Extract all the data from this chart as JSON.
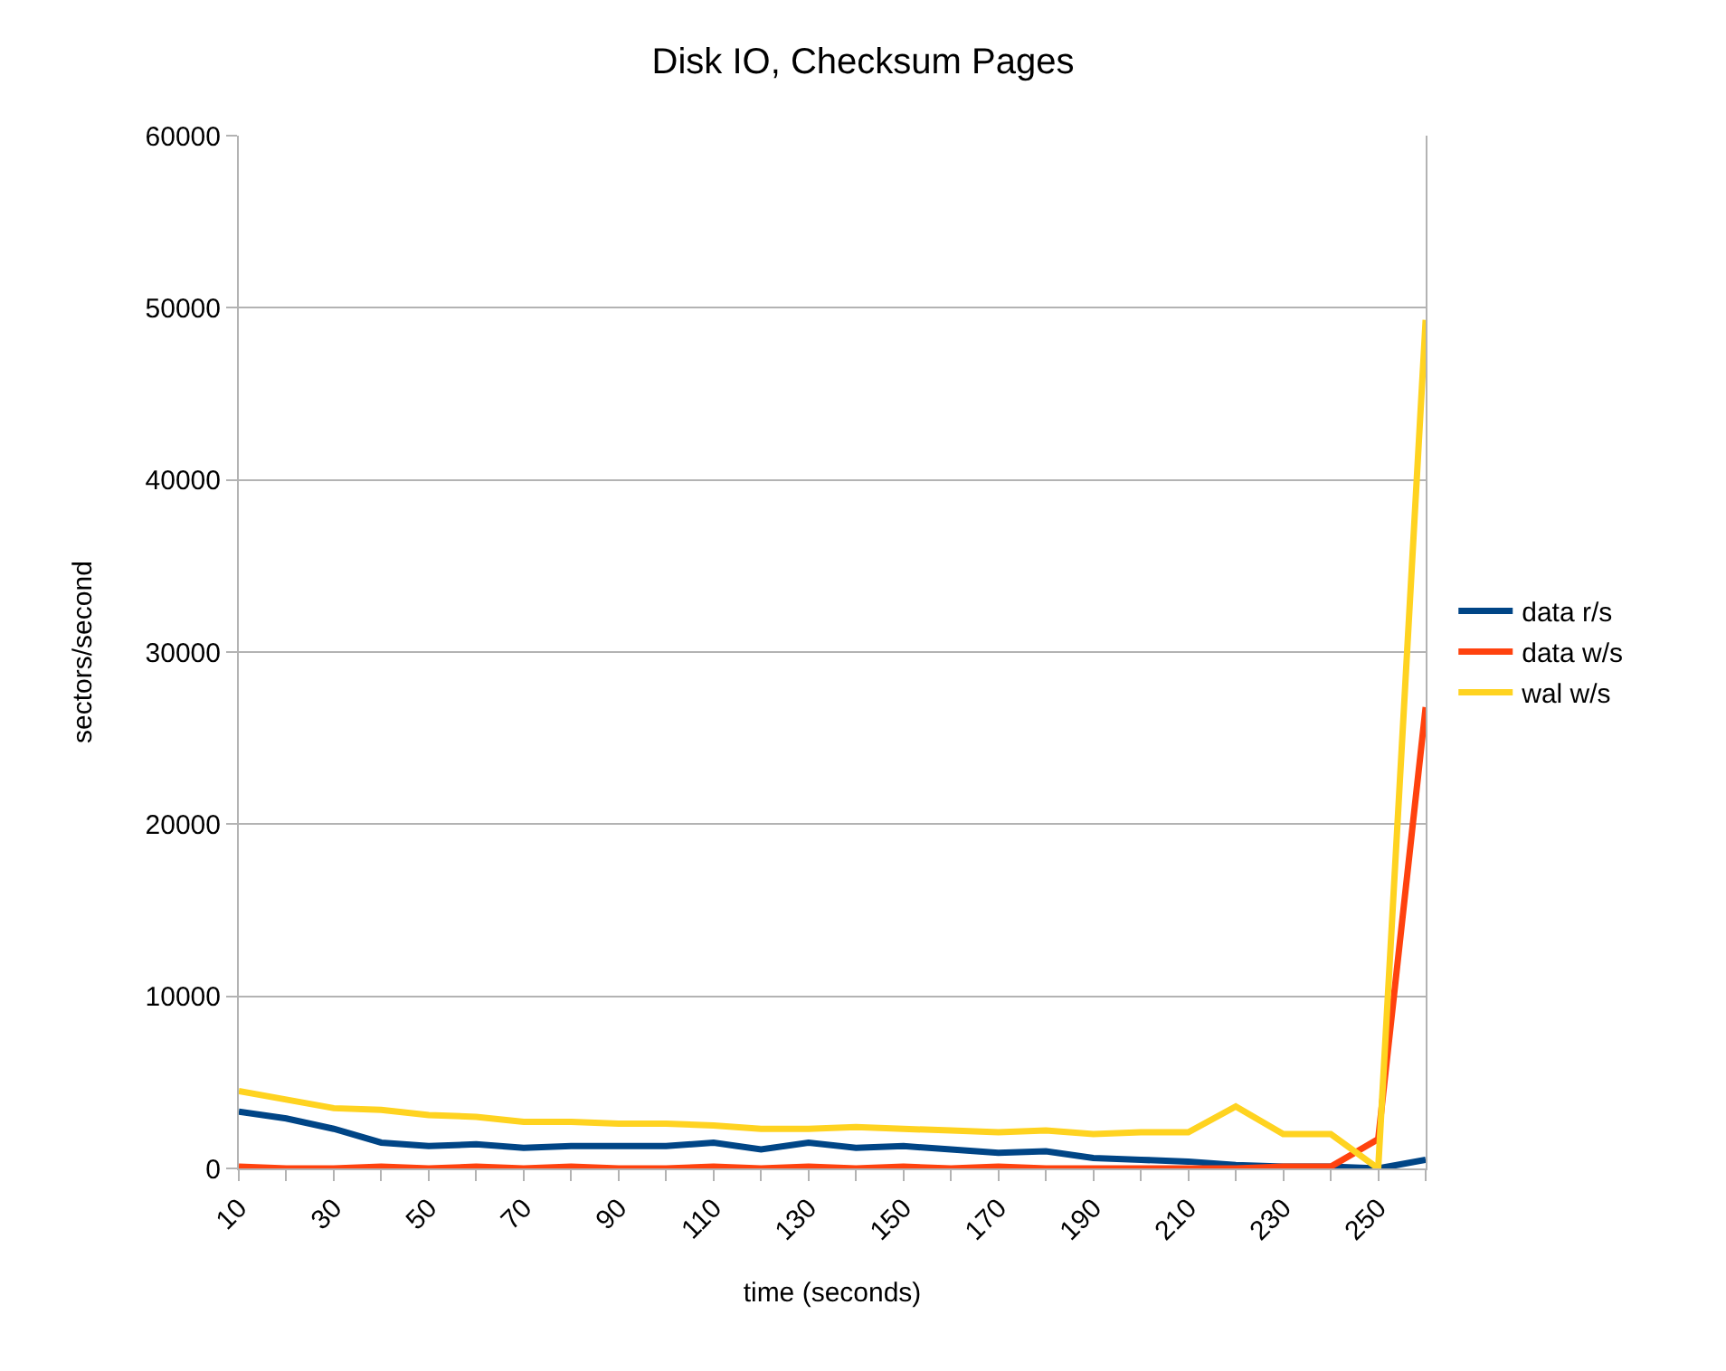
{
  "chart_data": {
    "type": "line",
    "title": "Disk IO, Checksum Pages",
    "xlabel": "time (seconds)",
    "ylabel": "sectors/second",
    "x": [
      10,
      20,
      30,
      40,
      50,
      60,
      70,
      80,
      90,
      100,
      110,
      120,
      130,
      140,
      150,
      160,
      170,
      180,
      190,
      200,
      210,
      220,
      230,
      240,
      250,
      260
    ],
    "series": [
      {
        "name": "data r/s",
        "color": "#004586",
        "values": [
          3300,
          2900,
          2300,
          1500,
          1300,
          1400,
          1200,
          1300,
          1300,
          1300,
          1500,
          1100,
          1500,
          1200,
          1300,
          1100,
          900,
          1000,
          600,
          500,
          400,
          200,
          100,
          100,
          0,
          500
        ]
      },
      {
        "name": "data w/s",
        "color": "#ff420e",
        "values": [
          100,
          0,
          0,
          100,
          0,
          100,
          0,
          100,
          0,
          0,
          100,
          0,
          100,
          0,
          100,
          0,
          100,
          0,
          0,
          0,
          0,
          0,
          100,
          100,
          1700,
          26800
        ]
      },
      {
        "name": "wal w/s",
        "color": "#ffd320",
        "values": [
          4500,
          4000,
          3500,
          3400,
          3100,
          3000,
          2700,
          2700,
          2600,
          2600,
          2500,
          2300,
          2300,
          2400,
          2300,
          2200,
          2100,
          2200,
          2000,
          2100,
          2100,
          3600,
          2000,
          2000,
          0,
          49300
        ]
      }
    ],
    "xlim": [
      10,
      260
    ],
    "xticks": [
      10,
      {
        "value": 20,
        "label": null
      },
      30,
      {
        "value": 40,
        "label": null
      },
      50,
      {
        "value": 60,
        "label": null
      },
      70,
      {
        "value": 80,
        "label": null
      },
      90,
      {
        "value": 100,
        "label": null
      },
      110,
      {
        "value": 120,
        "label": null
      },
      130,
      {
        "value": 140,
        "label": null
      },
      150,
      {
        "value": 160,
        "label": null
      },
      170,
      {
        "value": 180,
        "label": null
      },
      190,
      {
        "value": 200,
        "label": null
      },
      210,
      {
        "value": 220,
        "label": null
      },
      230,
      {
        "value": 240,
        "label": null
      },
      250,
      {
        "value": 260,
        "label": null
      }
    ],
    "ylim": [
      0,
      60000
    ],
    "yticks": [
      0,
      10000,
      20000,
      30000,
      40000,
      50000,
      60000
    ],
    "grid": "y",
    "legend": "right",
    "marker": "none",
    "line_style": "solid"
  }
}
